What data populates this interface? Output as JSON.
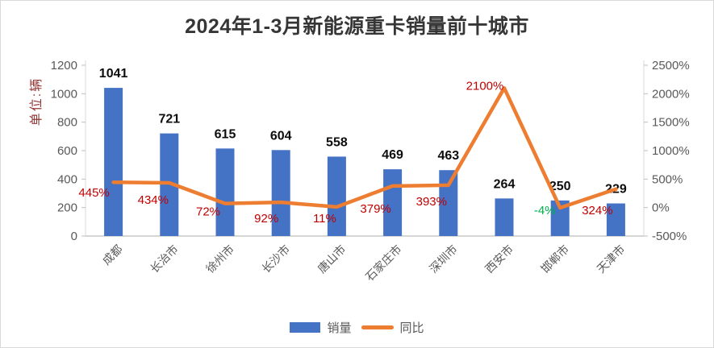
{
  "chart_data": {
    "type": "combo_bar_line",
    "title": "2024年1-3月新能源重卡销量前十城市",
    "categories": [
      "成都",
      "长治市",
      "徐州市",
      "长沙市",
      "唐山市",
      "石家庄市",
      "深圳市",
      "西安市",
      "邯郸市",
      "天津市"
    ],
    "series": [
      {
        "name": "销量",
        "type": "bar",
        "axis": "left",
        "color": "#4472C4",
        "values": [
          1041,
          721,
          615,
          604,
          558,
          469,
          463,
          264,
          250,
          229
        ]
      },
      {
        "name": "同比",
        "type": "line",
        "axis": "right",
        "color": "#ED7D31",
        "values_percent": [
          445,
          434,
          72,
          92,
          11,
          379,
          393,
          2100,
          -4,
          324
        ],
        "labels": [
          "445%",
          "434%",
          "72%",
          "92%",
          "11%",
          "379%",
          "393%",
          "2100%",
          "-4%",
          "324%"
        ],
        "label_color": "#C00000",
        "negative_label_color": "#00B050",
        "label_offsets": [
          [
            -24,
            13
          ],
          [
            -20,
            21
          ],
          [
            -21,
            10
          ],
          [
            -18,
            20
          ],
          [
            -15,
            14
          ],
          [
            -21,
            28
          ],
          [
            -21,
            20
          ],
          [
            -24,
            -3
          ],
          [
            -19,
            3
          ],
          [
            -23,
            26
          ]
        ]
      }
    ],
    "left_axis": {
      "title": "单位:辆",
      "min": 0,
      "max": 1200,
      "step": 200,
      "tick_labels": [
        "0",
        "200",
        "400",
        "600",
        "800",
        "1000",
        "1200"
      ]
    },
    "right_axis": {
      "min": -500,
      "max": 2500,
      "step": 500,
      "tick_labels": [
        "-500%",
        "0%",
        "500%",
        "1000%",
        "1500%",
        "2000%",
        "2500%"
      ]
    },
    "legend": [
      {
        "label": "销量",
        "swatch": "bar",
        "color": "#4472C4"
      },
      {
        "label": "同比",
        "swatch": "line",
        "color": "#ED7D31"
      }
    ],
    "grid": false,
    "legend_position": "bottom",
    "colors": {
      "axis_text": "#595959",
      "axis_line": "#C9C9C9",
      "tick_mark": "#BFBFBF",
      "title_text": "#363636",
      "axis_title_text": "#953735",
      "frame_border": "#D9D9D9"
    }
  }
}
